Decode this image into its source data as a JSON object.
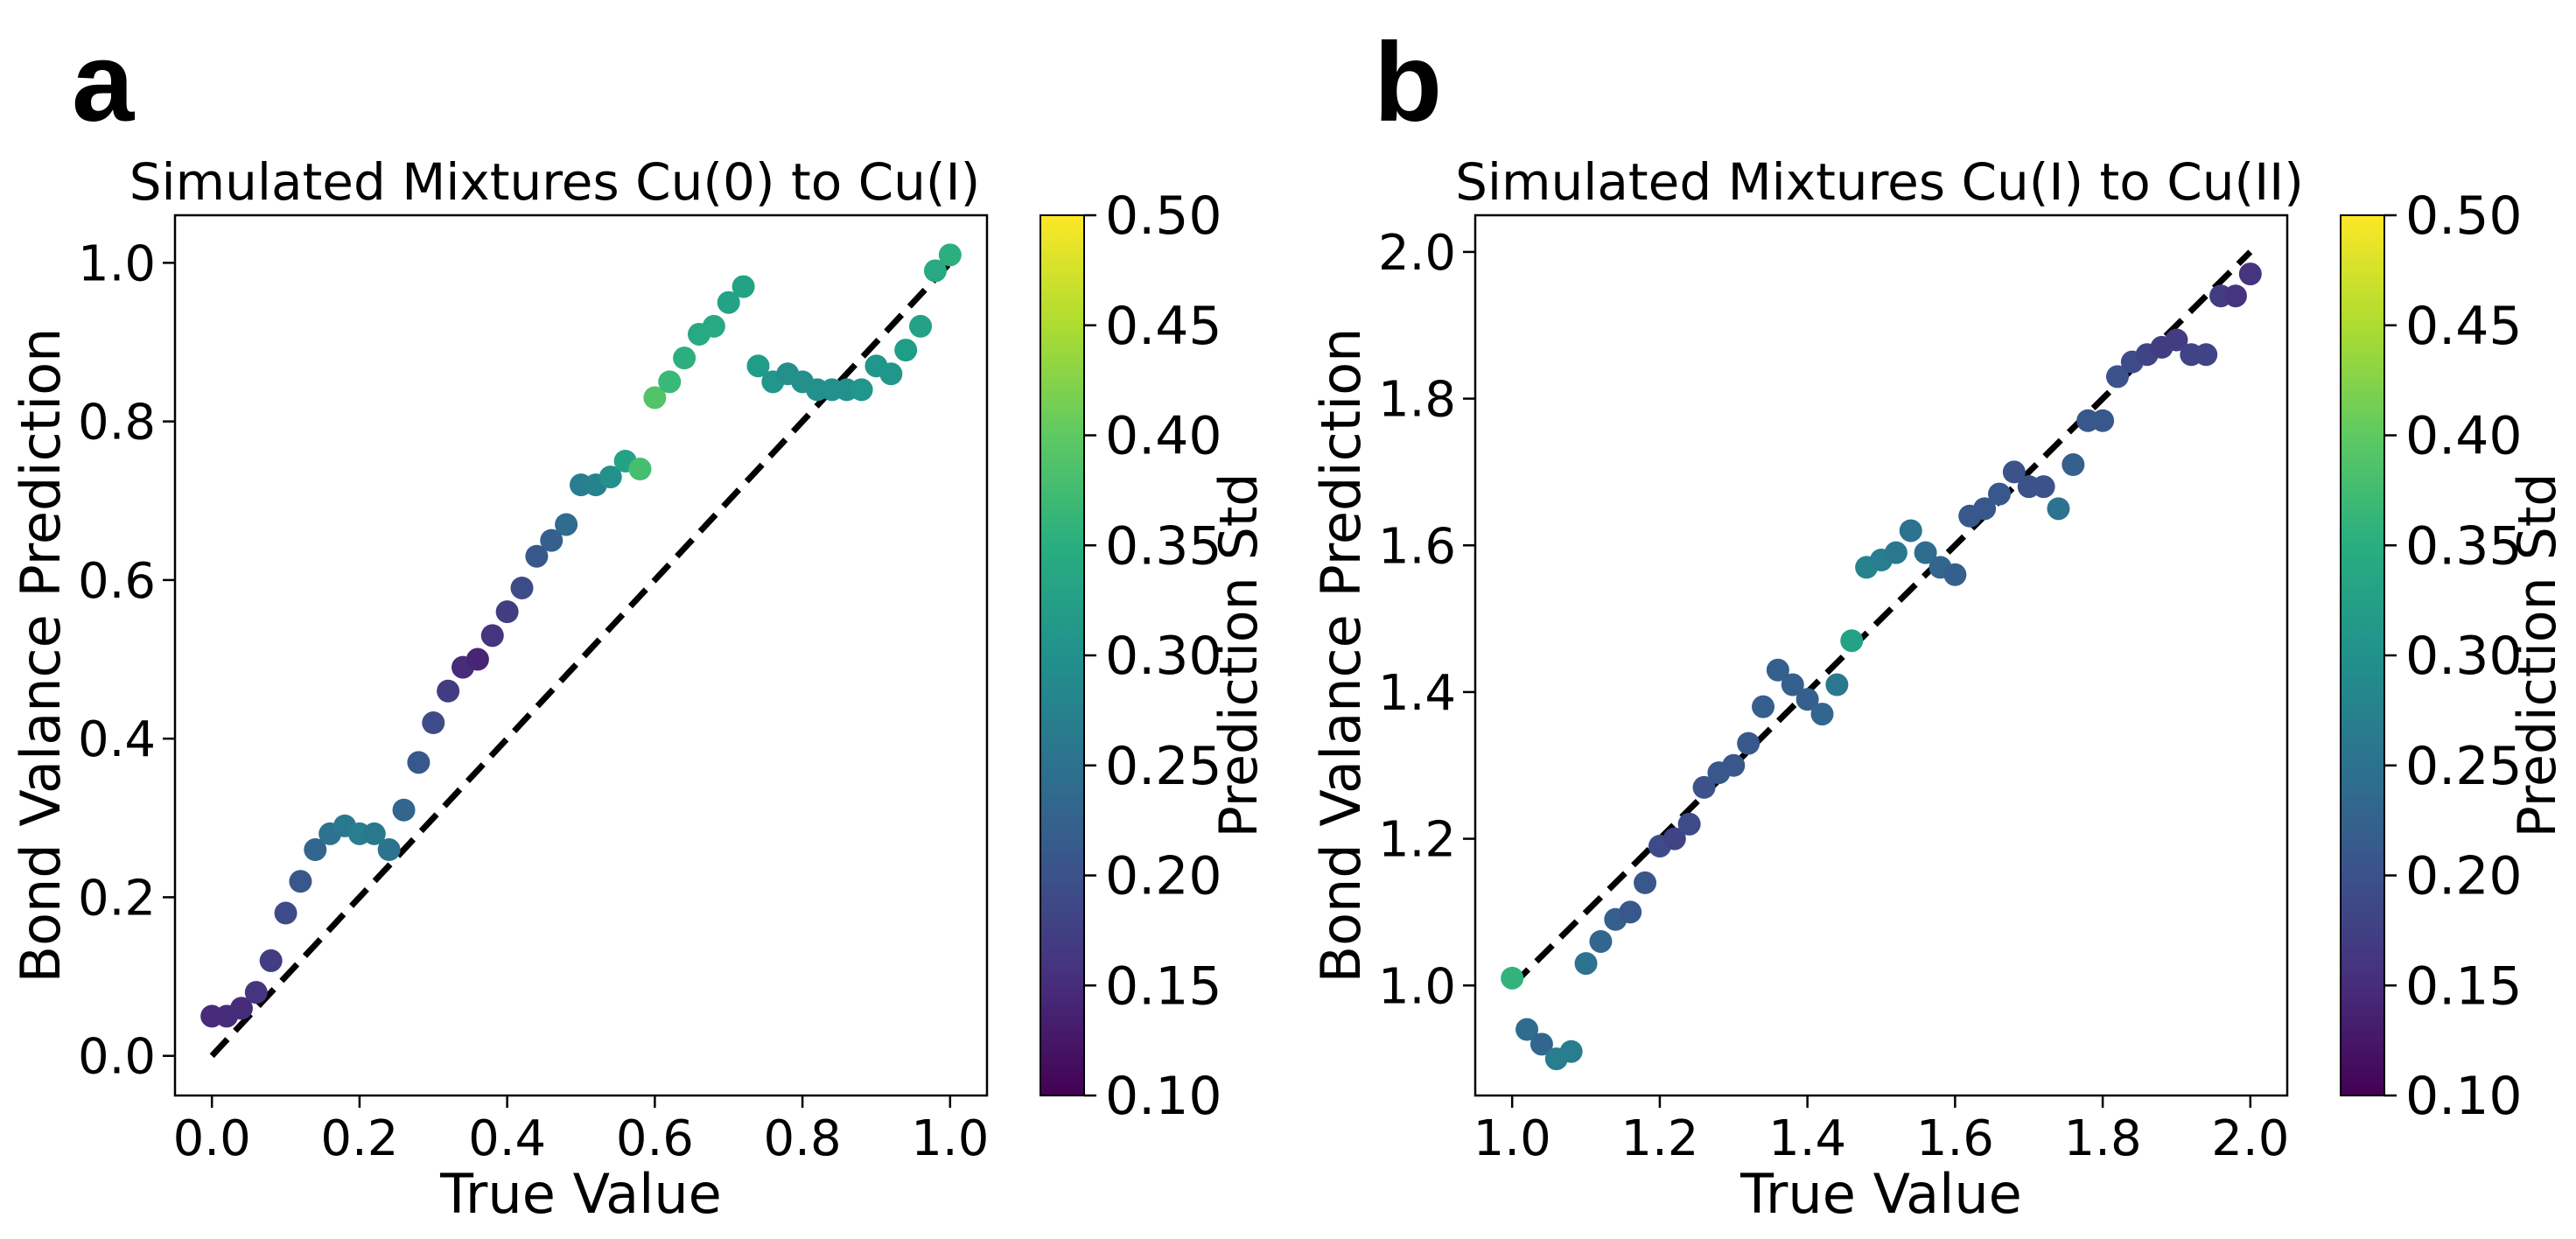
{
  "figure": {
    "panels": [
      "a",
      "b"
    ]
  },
  "colorbar": {
    "colormap": "viridis",
    "label": "Prediction Std",
    "range": [
      0.1,
      0.5
    ],
    "ticks": [
      "0.10",
      "0.15",
      "0.20",
      "0.25",
      "0.30",
      "0.35",
      "0.40",
      "0.45",
      "0.50"
    ]
  },
  "chart_data": [
    {
      "type": "scatter",
      "panel": "a",
      "title": "Simulated Mixtures Cu(0) to Cu(I)",
      "xlabel": "True Value",
      "ylabel": "Bond Valance Prediction",
      "xlim": [
        -0.05,
        1.05
      ],
      "ylim": [
        -0.05,
        1.06
      ],
      "xticks": [
        "0.0",
        "0.2",
        "0.4",
        "0.6",
        "0.8",
        "1.0"
      ],
      "yticks": [
        "0.0",
        "0.2",
        "0.4",
        "0.6",
        "0.8",
        "1.0"
      ],
      "reference_line": {
        "style": "dashed",
        "from": [
          0.0,
          0.0
        ],
        "to": [
          1.0,
          1.0
        ]
      },
      "points": [
        {
          "x": 0.0,
          "y": 0.05,
          "std": 0.15
        },
        {
          "x": 0.02,
          "y": 0.05,
          "std": 0.15
        },
        {
          "x": 0.04,
          "y": 0.06,
          "std": 0.15
        },
        {
          "x": 0.06,
          "y": 0.08,
          "std": 0.16
        },
        {
          "x": 0.08,
          "y": 0.12,
          "std": 0.17
        },
        {
          "x": 0.1,
          "y": 0.18,
          "std": 0.19
        },
        {
          "x": 0.12,
          "y": 0.22,
          "std": 0.21
        },
        {
          "x": 0.14,
          "y": 0.26,
          "std": 0.23
        },
        {
          "x": 0.16,
          "y": 0.28,
          "std": 0.25
        },
        {
          "x": 0.18,
          "y": 0.29,
          "std": 0.26
        },
        {
          "x": 0.2,
          "y": 0.28,
          "std": 0.27
        },
        {
          "x": 0.22,
          "y": 0.28,
          "std": 0.26
        },
        {
          "x": 0.24,
          "y": 0.26,
          "std": 0.25
        },
        {
          "x": 0.26,
          "y": 0.31,
          "std": 0.23
        },
        {
          "x": 0.28,
          "y": 0.37,
          "std": 0.21
        },
        {
          "x": 0.3,
          "y": 0.42,
          "std": 0.19
        },
        {
          "x": 0.32,
          "y": 0.46,
          "std": 0.17
        },
        {
          "x": 0.34,
          "y": 0.49,
          "std": 0.15
        },
        {
          "x": 0.36,
          "y": 0.5,
          "std": 0.14
        },
        {
          "x": 0.38,
          "y": 0.53,
          "std": 0.16
        },
        {
          "x": 0.4,
          "y": 0.56,
          "std": 0.17
        },
        {
          "x": 0.42,
          "y": 0.59,
          "std": 0.19
        },
        {
          "x": 0.44,
          "y": 0.63,
          "std": 0.21
        },
        {
          "x": 0.46,
          "y": 0.65,
          "std": 0.22
        },
        {
          "x": 0.48,
          "y": 0.67,
          "std": 0.24
        },
        {
          "x": 0.5,
          "y": 0.72,
          "std": 0.27
        },
        {
          "x": 0.52,
          "y": 0.72,
          "std": 0.28
        },
        {
          "x": 0.54,
          "y": 0.73,
          "std": 0.3
        },
        {
          "x": 0.56,
          "y": 0.75,
          "std": 0.33
        },
        {
          "x": 0.58,
          "y": 0.74,
          "std": 0.38
        },
        {
          "x": 0.6,
          "y": 0.83,
          "std": 0.39
        },
        {
          "x": 0.62,
          "y": 0.85,
          "std": 0.37
        },
        {
          "x": 0.64,
          "y": 0.88,
          "std": 0.35
        },
        {
          "x": 0.66,
          "y": 0.91,
          "std": 0.34
        },
        {
          "x": 0.68,
          "y": 0.92,
          "std": 0.34
        },
        {
          "x": 0.7,
          "y": 0.95,
          "std": 0.33
        },
        {
          "x": 0.72,
          "y": 0.97,
          "std": 0.33
        },
        {
          "x": 0.74,
          "y": 0.87,
          "std": 0.32
        },
        {
          "x": 0.76,
          "y": 0.85,
          "std": 0.31
        },
        {
          "x": 0.78,
          "y": 0.86,
          "std": 0.3
        },
        {
          "x": 0.8,
          "y": 0.85,
          "std": 0.3
        },
        {
          "x": 0.82,
          "y": 0.84,
          "std": 0.3
        },
        {
          "x": 0.84,
          "y": 0.84,
          "std": 0.3
        },
        {
          "x": 0.86,
          "y": 0.84,
          "std": 0.3
        },
        {
          "x": 0.88,
          "y": 0.84,
          "std": 0.31
        },
        {
          "x": 0.9,
          "y": 0.87,
          "std": 0.31
        },
        {
          "x": 0.92,
          "y": 0.86,
          "std": 0.31
        },
        {
          "x": 0.94,
          "y": 0.89,
          "std": 0.32
        },
        {
          "x": 0.96,
          "y": 0.92,
          "std": 0.33
        },
        {
          "x": 0.98,
          "y": 0.99,
          "std": 0.34
        },
        {
          "x": 1.0,
          "y": 1.01,
          "std": 0.35
        }
      ]
    },
    {
      "type": "scatter",
      "panel": "b",
      "title": "Simulated Mixtures Cu(I) to Cu(II)",
      "xlabel": "True Value",
      "ylabel": "Bond Valance Prediction",
      "xlim": [
        0.95,
        2.05
      ],
      "ylim": [
        0.85,
        2.05
      ],
      "xticks": [
        "1.0",
        "1.2",
        "1.4",
        "1.6",
        "1.8",
        "2.0"
      ],
      "yticks": [
        "1.0",
        "1.2",
        "1.4",
        "1.6",
        "1.8",
        "2.0"
      ],
      "reference_line": {
        "style": "dashed",
        "from": [
          1.0,
          1.0
        ],
        "to": [
          2.0,
          2.0
        ]
      },
      "points": [
        {
          "x": 1.0,
          "y": 1.01,
          "std": 0.36
        },
        {
          "x": 1.02,
          "y": 0.94,
          "std": 0.24
        },
        {
          "x": 1.04,
          "y": 0.92,
          "std": 0.23
        },
        {
          "x": 1.06,
          "y": 0.9,
          "std": 0.27
        },
        {
          "x": 1.08,
          "y": 0.91,
          "std": 0.27
        },
        {
          "x": 1.1,
          "y": 1.03,
          "std": 0.25
        },
        {
          "x": 1.12,
          "y": 1.06,
          "std": 0.23
        },
        {
          "x": 1.14,
          "y": 1.09,
          "std": 0.22
        },
        {
          "x": 1.16,
          "y": 1.1,
          "std": 0.21
        },
        {
          "x": 1.18,
          "y": 1.14,
          "std": 0.21
        },
        {
          "x": 1.2,
          "y": 1.19,
          "std": 0.19
        },
        {
          "x": 1.22,
          "y": 1.2,
          "std": 0.18
        },
        {
          "x": 1.24,
          "y": 1.22,
          "std": 0.19
        },
        {
          "x": 1.26,
          "y": 1.27,
          "std": 0.2
        },
        {
          "x": 1.28,
          "y": 1.29,
          "std": 0.21
        },
        {
          "x": 1.3,
          "y": 1.3,
          "std": 0.21
        },
        {
          "x": 1.32,
          "y": 1.33,
          "std": 0.21
        },
        {
          "x": 1.34,
          "y": 1.38,
          "std": 0.22
        },
        {
          "x": 1.36,
          "y": 1.43,
          "std": 0.22
        },
        {
          "x": 1.38,
          "y": 1.41,
          "std": 0.22
        },
        {
          "x": 1.4,
          "y": 1.39,
          "std": 0.22
        },
        {
          "x": 1.42,
          "y": 1.37,
          "std": 0.23
        },
        {
          "x": 1.44,
          "y": 1.41,
          "std": 0.26
        },
        {
          "x": 1.46,
          "y": 1.47,
          "std": 0.33
        },
        {
          "x": 1.48,
          "y": 1.57,
          "std": 0.28
        },
        {
          "x": 1.5,
          "y": 1.58,
          "std": 0.27
        },
        {
          "x": 1.52,
          "y": 1.59,
          "std": 0.26
        },
        {
          "x": 1.54,
          "y": 1.62,
          "std": 0.25
        },
        {
          "x": 1.56,
          "y": 1.59,
          "std": 0.24
        },
        {
          "x": 1.58,
          "y": 1.57,
          "std": 0.23
        },
        {
          "x": 1.6,
          "y": 1.56,
          "std": 0.22
        },
        {
          "x": 1.62,
          "y": 1.64,
          "std": 0.21
        },
        {
          "x": 1.64,
          "y": 1.65,
          "std": 0.21
        },
        {
          "x": 1.66,
          "y": 1.67,
          "std": 0.21
        },
        {
          "x": 1.68,
          "y": 1.7,
          "std": 0.2
        },
        {
          "x": 1.7,
          "y": 1.68,
          "std": 0.2
        },
        {
          "x": 1.72,
          "y": 1.68,
          "std": 0.2
        },
        {
          "x": 1.74,
          "y": 1.65,
          "std": 0.25
        },
        {
          "x": 1.76,
          "y": 1.71,
          "std": 0.22
        },
        {
          "x": 1.78,
          "y": 1.77,
          "std": 0.21
        },
        {
          "x": 1.8,
          "y": 1.77,
          "std": 0.21
        },
        {
          "x": 1.82,
          "y": 1.83,
          "std": 0.2
        },
        {
          "x": 1.84,
          "y": 1.85,
          "std": 0.19
        },
        {
          "x": 1.86,
          "y": 1.86,
          "std": 0.18
        },
        {
          "x": 1.88,
          "y": 1.87,
          "std": 0.17
        },
        {
          "x": 1.9,
          "y": 1.88,
          "std": 0.17
        },
        {
          "x": 1.92,
          "y": 1.86,
          "std": 0.18
        },
        {
          "x": 1.94,
          "y": 1.86,
          "std": 0.18
        },
        {
          "x": 1.96,
          "y": 1.94,
          "std": 0.17
        },
        {
          "x": 1.98,
          "y": 1.94,
          "std": 0.16
        },
        {
          "x": 2.0,
          "y": 1.97,
          "std": 0.16
        }
      ]
    }
  ]
}
